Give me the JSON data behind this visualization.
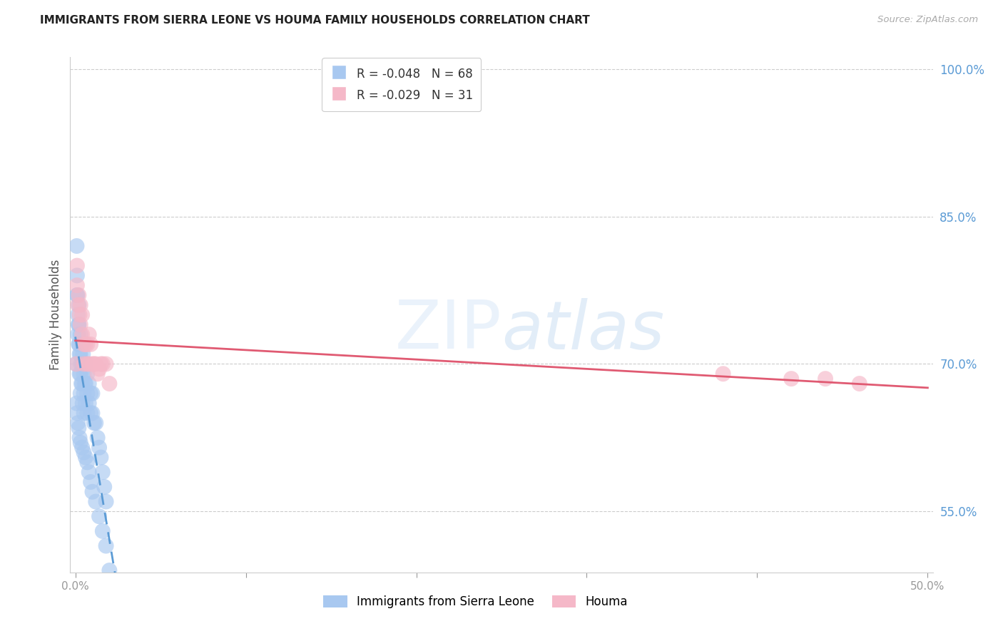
{
  "title": "IMMIGRANTS FROM SIERRA LEONE VS HOUMA FAMILY HOUSEHOLDS CORRELATION CHART",
  "source": "Source: ZipAtlas.com",
  "ylabel": "Family Households",
  "R_blue": -0.048,
  "N_blue": 68,
  "R_pink": -0.029,
  "N_pink": 31,
  "xlim": [
    -0.003,
    0.503
  ],
  "ylim": [
    0.488,
    1.012
  ],
  "right_yticks": [
    0.55,
    0.7,
    0.85,
    1.0
  ],
  "right_ytick_labels": [
    "55.0%",
    "70.0%",
    "85.0%",
    "100.0%"
  ],
  "xticks": [
    0.0,
    0.1,
    0.2,
    0.3,
    0.4,
    0.5
  ],
  "blue_color": "#a8c8f0",
  "pink_color": "#f5b8c8",
  "trend_blue_color": "#5b9bd5",
  "trend_pink_color": "#e05a72",
  "grid_color": "#cccccc",
  "blue_x": [
    0.0005,
    0.0008,
    0.001,
    0.001,
    0.0012,
    0.0015,
    0.0015,
    0.0018,
    0.002,
    0.002,
    0.002,
    0.0022,
    0.0025,
    0.0025,
    0.003,
    0.003,
    0.003,
    0.003,
    0.0032,
    0.0035,
    0.004,
    0.004,
    0.004,
    0.0042,
    0.0045,
    0.005,
    0.005,
    0.005,
    0.005,
    0.0055,
    0.006,
    0.006,
    0.006,
    0.007,
    0.007,
    0.007,
    0.008,
    0.008,
    0.009,
    0.009,
    0.01,
    0.01,
    0.011,
    0.012,
    0.013,
    0.014,
    0.015,
    0.016,
    0.017,
    0.018,
    0.0008,
    0.001,
    0.0015,
    0.002,
    0.0025,
    0.003,
    0.004,
    0.005,
    0.006,
    0.007,
    0.008,
    0.009,
    0.01,
    0.012,
    0.014,
    0.016,
    0.018,
    0.02
  ],
  "blue_y": [
    0.7,
    0.82,
    0.79,
    0.77,
    0.77,
    0.75,
    0.73,
    0.74,
    0.76,
    0.74,
    0.72,
    0.72,
    0.71,
    0.69,
    0.73,
    0.71,
    0.69,
    0.67,
    0.7,
    0.68,
    0.72,
    0.7,
    0.68,
    0.66,
    0.71,
    0.7,
    0.69,
    0.67,
    0.65,
    0.68,
    0.7,
    0.68,
    0.66,
    0.69,
    0.67,
    0.65,
    0.68,
    0.66,
    0.67,
    0.65,
    0.67,
    0.65,
    0.64,
    0.64,
    0.625,
    0.615,
    0.605,
    0.59,
    0.575,
    0.56,
    0.66,
    0.65,
    0.64,
    0.635,
    0.625,
    0.62,
    0.615,
    0.61,
    0.605,
    0.6,
    0.59,
    0.58,
    0.57,
    0.56,
    0.545,
    0.53,
    0.515,
    0.49
  ],
  "pink_x": [
    0.0005,
    0.001,
    0.001,
    0.0015,
    0.002,
    0.0025,
    0.003,
    0.003,
    0.004,
    0.004,
    0.005,
    0.005,
    0.006,
    0.007,
    0.007,
    0.008,
    0.008,
    0.009,
    0.01,
    0.011,
    0.012,
    0.013,
    0.014,
    0.015,
    0.016,
    0.018,
    0.02,
    0.38,
    0.42,
    0.44,
    0.46
  ],
  "pink_y": [
    0.7,
    0.8,
    0.78,
    0.76,
    0.77,
    0.75,
    0.76,
    0.74,
    0.75,
    0.73,
    0.72,
    0.7,
    0.72,
    0.72,
    0.7,
    0.73,
    0.7,
    0.72,
    0.7,
    0.7,
    0.7,
    0.69,
    0.695,
    0.7,
    0.7,
    0.7,
    0.68,
    0.69,
    0.685,
    0.685,
    0.68
  ]
}
